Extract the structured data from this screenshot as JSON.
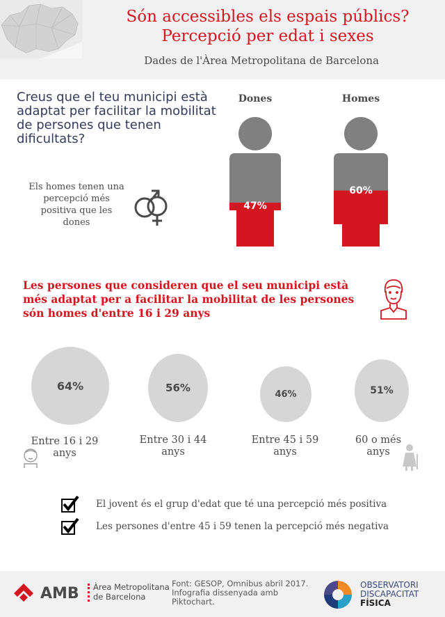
{
  "header": {
    "title_line1": "Són accessibles els espais públics?",
    "title_line2": "Percepció per edat i sexes",
    "subtitle": "Dades de l'Àrea Metropolitana de Barcelona"
  },
  "question": {
    "text": "Creus que el teu municipi està adaptat per facilitar la mobilitat de persones que tenen dificultats?",
    "note": "Els homes tenen una percepció més positiva que les dones"
  },
  "gender": {
    "women_label": "Dones",
    "women_pct": "47%",
    "women_value": 47,
    "men_label": "Homes",
    "men_pct": "60%",
    "men_value": 60
  },
  "highlight": {
    "text": "Les persones que consideren que el seu municipi està més adaptat per a facilitar la mobilitat de les persones són homes d'entre 16 i 29 anys"
  },
  "age_groups": [
    {
      "pct": "64%",
      "value": 64,
      "label_line1": "Entre 16 i 29",
      "label_line2": "anys"
    },
    {
      "pct": "56%",
      "value": 56,
      "label_line1": "Entre 30 i 44",
      "label_line2": "anys"
    },
    {
      "pct": "46%",
      "value": 46,
      "label_line1": "Entre 45 i 59",
      "label_line2": "anys"
    },
    {
      "pct": "51%",
      "value": 51,
      "label_line1": "60 o més",
      "label_line2": "anys"
    }
  ],
  "checks": [
    "El jovent és el grup d'edat que té una percepció més positiva",
    "Les persones d'entre 45 i 59 tenen la percepció més negativa"
  ],
  "footer": {
    "amb": "AMB",
    "amb_sub_line1": "Àrea Metropolitana",
    "amb_sub_line2": "de Barcelona",
    "source_line1": "Font: GESOP, Omnibus abril 2017.",
    "source_line2": "Infografia dissenyada amb",
    "source_line3": "Piktochart.",
    "obs_line1": "OBSERVATORI",
    "obs_line2": "DISCAPACITAT",
    "obs_line3": "FÍSICA"
  },
  "colors": {
    "red": "#d3161f",
    "grey": "#808080",
    "circle": "#d6d6d6"
  }
}
